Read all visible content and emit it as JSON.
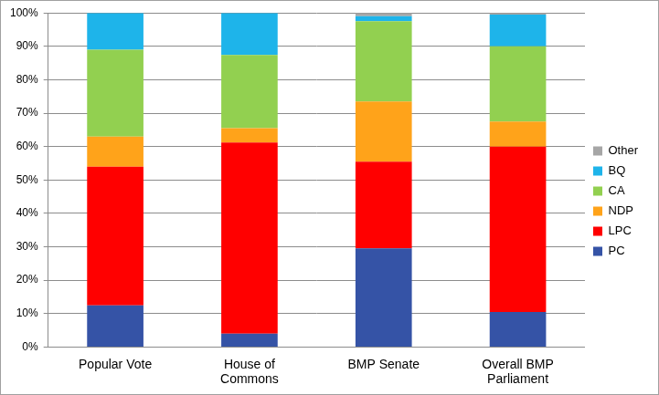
{
  "chart_data": {
    "type": "bar",
    "stacked": true,
    "grid": true,
    "legend": "right",
    "categories": [
      "Popular Vote",
      "House of Commons",
      "BMP Senate",
      "Overall BMP Parliament"
    ],
    "series": [
      {
        "name": "PC",
        "color": "#3553a6",
        "values": [
          12.5,
          4,
          29.5,
          10.5
        ]
      },
      {
        "name": "LPC",
        "color": "#ff0000",
        "values": [
          41.5,
          57.2,
          26,
          49.5
        ]
      },
      {
        "name": "NDP",
        "color": "#ffa31a",
        "values": [
          9,
          4.3,
          18,
          7.5
        ]
      },
      {
        "name": "CA",
        "color": "#92d050",
        "values": [
          26,
          21.9,
          24,
          22.5
        ]
      },
      {
        "name": "BQ",
        "color": "#1eb4ea",
        "values": [
          11,
          12.6,
          1.5,
          9.5
        ]
      },
      {
        "name": "Other",
        "color": "#a6a6a6",
        "values": [
          0,
          0,
          1,
          0.5
        ]
      }
    ],
    "ylim": [
      0,
      100
    ],
    "yticks": [
      {
        "value": 0,
        "label": "0%"
      },
      {
        "value": 10,
        "label": "10%"
      },
      {
        "value": 20,
        "label": "20%"
      },
      {
        "value": 30,
        "label": "30%"
      },
      {
        "value": 40,
        "label": "40%"
      },
      {
        "value": 50,
        "label": "50%"
      },
      {
        "value": 60,
        "label": "60%"
      },
      {
        "value": 70,
        "label": "70%"
      },
      {
        "value": 80,
        "label": "80%"
      },
      {
        "value": 90,
        "label": "90%"
      },
      {
        "value": 100,
        "label": "100%"
      }
    ]
  }
}
